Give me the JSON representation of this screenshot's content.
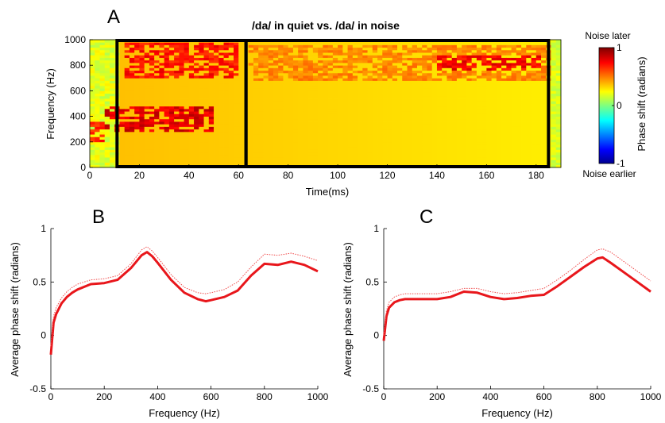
{
  "chart_data": [
    {
      "panel": "A",
      "type": "heatmap",
      "title": "/da/ in quiet vs. /da/ in noise",
      "xlabel": "Time(ms)",
      "ylabel": "Frequency (Hz)",
      "xlim": [
        0,
        190
      ],
      "ylim": [
        0,
        1000
      ],
      "xticks": [
        0,
        20,
        40,
        60,
        80,
        100,
        120,
        140,
        160,
        180
      ],
      "yticks": [
        0,
        200,
        400,
        600,
        800,
        1000
      ],
      "boxed_regions_ms": [
        [
          11,
          63
        ],
        [
          63,
          185
        ]
      ],
      "colorbar": {
        "label": "Phase shift (radians)",
        "range": [
          -1,
          1
        ],
        "ticks": [
          -1,
          0,
          1
        ],
        "top_label": "Noise later",
        "bottom_label": "Noise earlier"
      },
      "regions": [
        {
          "t": [
            0,
            5
          ],
          "f": [
            210,
            360
          ],
          "value": 0.75
        },
        {
          "t": [
            6,
            50
          ],
          "f": [
            280,
            470
          ],
          "value": 0.9
        },
        {
          "t": [
            14,
            60
          ],
          "f": [
            700,
            970
          ],
          "value": 0.8
        },
        {
          "t": [
            64,
            190
          ],
          "f": [
            680,
            960
          ],
          "value": 0.55
        },
        {
          "t": [
            140,
            182
          ],
          "f": [
            760,
            880
          ],
          "value": 0.85
        }
      ]
    },
    {
      "panel": "B",
      "type": "line",
      "xlabel": "Frequency (Hz)",
      "ylabel": "Average phase shift (radians)",
      "xlim": [
        0,
        1000
      ],
      "ylim": [
        -0.5,
        1
      ],
      "xticks": [
        0,
        200,
        400,
        600,
        800,
        1000
      ],
      "yticks": [
        -0.5,
        0,
        0.5,
        1
      ],
      "x": [
        0,
        10,
        20,
        40,
        60,
        80,
        100,
        150,
        200,
        250,
        300,
        340,
        360,
        380,
        400,
        450,
        500,
        550,
        580,
        600,
        650,
        700,
        750,
        800,
        850,
        900,
        950,
        1000
      ],
      "series": [
        {
          "style": "thick",
          "values": [
            -0.18,
            0.12,
            0.2,
            0.3,
            0.36,
            0.4,
            0.43,
            0.48,
            0.49,
            0.52,
            0.63,
            0.75,
            0.78,
            0.74,
            0.68,
            0.52,
            0.4,
            0.34,
            0.32,
            0.33,
            0.36,
            0.42,
            0.56,
            0.67,
            0.66,
            0.69,
            0.66,
            0.6
          ]
        },
        {
          "style": "dotted",
          "values": [
            -0.1,
            0.18,
            0.26,
            0.35,
            0.41,
            0.45,
            0.48,
            0.52,
            0.53,
            0.56,
            0.67,
            0.8,
            0.83,
            0.79,
            0.73,
            0.57,
            0.45,
            0.4,
            0.39,
            0.4,
            0.43,
            0.5,
            0.64,
            0.76,
            0.75,
            0.77,
            0.74,
            0.7
          ]
        }
      ]
    },
    {
      "panel": "C",
      "type": "line",
      "xlabel": "Frequency (Hz)",
      "ylabel": "Average phase shift (radians)",
      "xlim": [
        0,
        1000
      ],
      "ylim": [
        -0.5,
        1
      ],
      "xticks": [
        0,
        200,
        400,
        600,
        800,
        1000
      ],
      "yticks": [
        -0.5,
        0,
        0.5,
        1
      ],
      "x": [
        0,
        10,
        20,
        40,
        60,
        80,
        100,
        150,
        200,
        250,
        300,
        350,
        400,
        450,
        500,
        550,
        600,
        650,
        700,
        750,
        800,
        820,
        850,
        900,
        950,
        1000
      ],
      "series": [
        {
          "style": "thick",
          "values": [
            -0.05,
            0.18,
            0.26,
            0.31,
            0.33,
            0.34,
            0.34,
            0.34,
            0.34,
            0.36,
            0.41,
            0.4,
            0.36,
            0.34,
            0.35,
            0.37,
            0.38,
            0.46,
            0.55,
            0.64,
            0.72,
            0.73,
            0.68,
            0.59,
            0.5,
            0.41
          ]
        },
        {
          "style": "dotted",
          "values": [
            0.0,
            0.23,
            0.31,
            0.36,
            0.38,
            0.39,
            0.39,
            0.39,
            0.39,
            0.41,
            0.44,
            0.44,
            0.41,
            0.39,
            0.4,
            0.42,
            0.44,
            0.52,
            0.61,
            0.71,
            0.8,
            0.81,
            0.78,
            0.69,
            0.6,
            0.51
          ]
        }
      ]
    }
  ],
  "panels": {
    "a": {
      "letter": "A"
    },
    "b": {
      "letter": "B"
    },
    "c": {
      "letter": "C"
    }
  },
  "colors": {
    "line": "#e8161b",
    "line_dotted": "#f04a4a"
  }
}
